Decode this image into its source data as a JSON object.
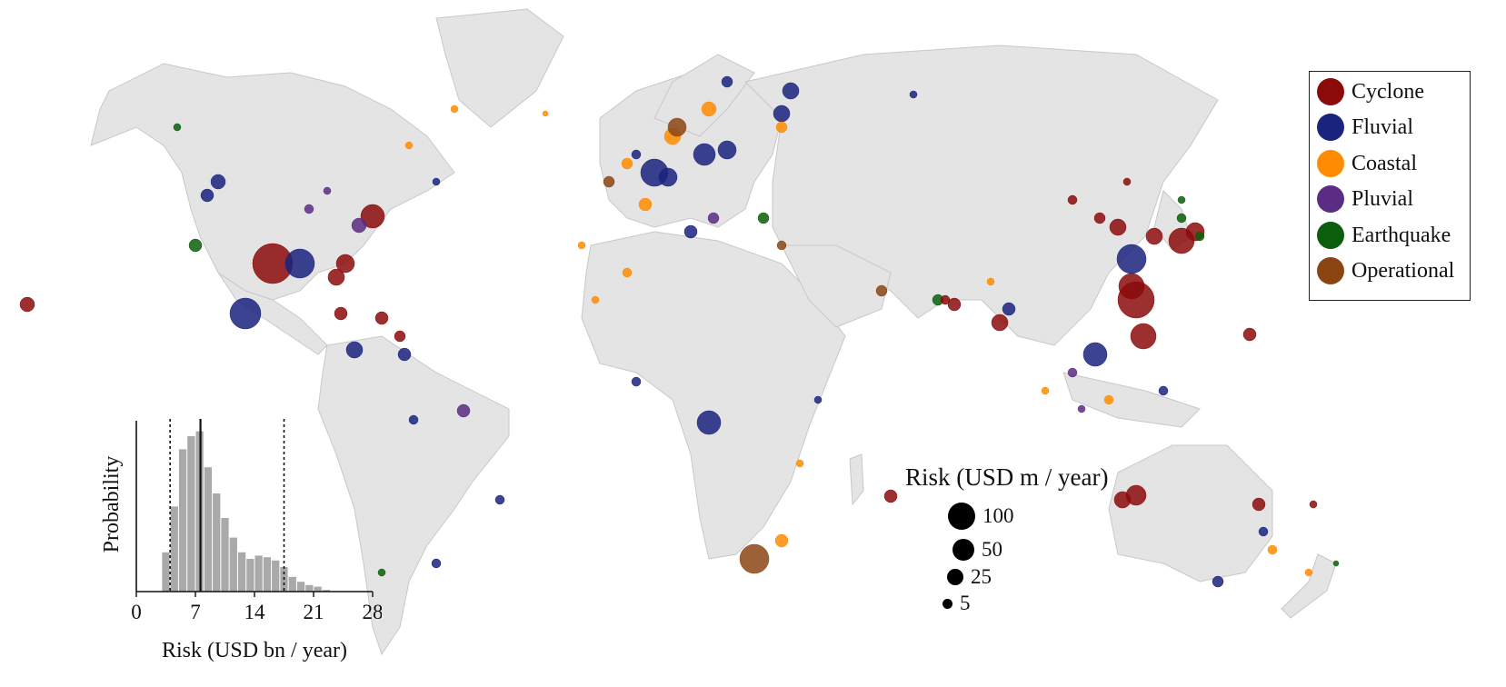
{
  "legend": {
    "items": [
      {
        "label": "Cyclone",
        "color": "#8B0A0A"
      },
      {
        "label": "Fluvial",
        "color": "#1A237E"
      },
      {
        "label": "Coastal",
        "color": "#FF8C00"
      },
      {
        "label": "Pluvial",
        "color": "#5B2C83"
      },
      {
        "label": "Earthquake",
        "color": "#0B5E0B"
      },
      {
        "label": "Operational",
        "color": "#8B4513"
      }
    ]
  },
  "size_legend": {
    "title": "Risk (USD m / year)",
    "items": [
      {
        "label": "100",
        "value": 100
      },
      {
        "label": "50",
        "value": 50
      },
      {
        "label": "25",
        "value": 25
      },
      {
        "label": "5",
        "value": 5
      }
    ]
  },
  "chart_data": {
    "type": "bar",
    "xlabel": "Risk (USD bn / year)",
    "ylabel": "Probability",
    "xlim": [
      0,
      28
    ],
    "xticks": [
      "0",
      "7",
      "14",
      "21",
      "28"
    ],
    "bin_width": 1,
    "bins_start": 3,
    "values": [
      0.24,
      0.52,
      0.87,
      0.95,
      0.98,
      0.76,
      0.6,
      0.45,
      0.33,
      0.24,
      0.2,
      0.22,
      0.21,
      0.19,
      0.15,
      0.09,
      0.06,
      0.04,
      0.03,
      0.01
    ],
    "mean_line": 7.6,
    "dotted_lines": [
      4.0,
      17.5
    ]
  }
}
